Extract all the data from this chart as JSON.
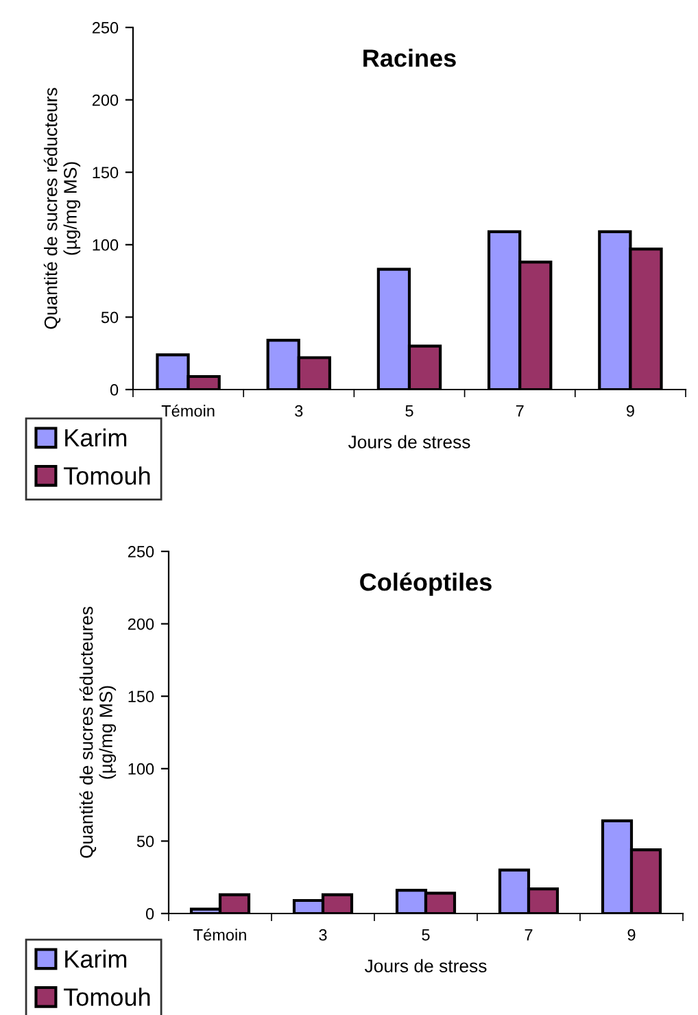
{
  "chart_data": [
    {
      "type": "bar",
      "title": "Racines",
      "xlabel": "Jours de stress",
      "ylabel": "Quantité de sucres réducteurs\n(µg/mg MS)",
      "categories": [
        "Témoin",
        "3",
        "5",
        "7",
        "9"
      ],
      "series": [
        {
          "name": "Karim",
          "color": "#9999ff",
          "values": [
            24,
            34,
            83,
            109,
            109
          ]
        },
        {
          "name": "Tomouh",
          "color": "#993366",
          "values": [
            9,
            22,
            30,
            88,
            97
          ]
        }
      ],
      "ylim": [
        0,
        250
      ],
      "yticks": [
        0,
        50,
        100,
        150,
        200,
        250
      ],
      "grid": false,
      "legend": "bottom left"
    },
    {
      "type": "bar",
      "title": "Coléoptiles",
      "xlabel": "Jours de stress",
      "ylabel": "Quantité de sucres réducteures\n(µg/mg MS)",
      "categories": [
        "Témoin",
        "3",
        "5",
        "7",
        "9"
      ],
      "series": [
        {
          "name": "Karim",
          "color": "#9999ff",
          "values": [
            3,
            9,
            16,
            30,
            64
          ]
        },
        {
          "name": "Tomouh",
          "color": "#993366",
          "values": [
            13,
            13,
            14,
            17,
            44
          ]
        }
      ],
      "ylim": [
        0,
        250
      ],
      "yticks": [
        0,
        50,
        100,
        150,
        200,
        250
      ],
      "grid": false,
      "legend": "bottom left"
    }
  ]
}
